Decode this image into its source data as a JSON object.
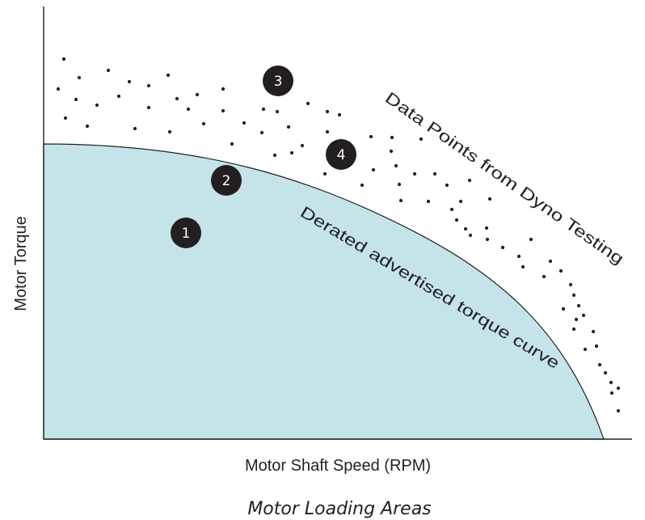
{
  "chart_data": {
    "type": "area",
    "title": "Motor Loading Areas",
    "xlabel": "Motor Shaft Speed (RPM)",
    "ylabel": "Motor Torque",
    "grid": false,
    "legend": "none",
    "colors": {
      "area_fill": "#c4e4ea",
      "ink": "#231f20",
      "marker_text": "#ffffff"
    },
    "series": [
      {
        "name": "Derated advertised torque curve",
        "kind": "area"
      },
      {
        "name": "Data Points from Dyno Testing",
        "kind": "scatter"
      }
    ],
    "annotations": [
      {
        "text": "Derated advertised torque curve"
      },
      {
        "text": "Data Points from Dyno Testing"
      }
    ],
    "area_markers": [
      {
        "label": "1"
      },
      {
        "label": "2"
      },
      {
        "label": "3"
      },
      {
        "label": "4"
      }
    ]
  }
}
